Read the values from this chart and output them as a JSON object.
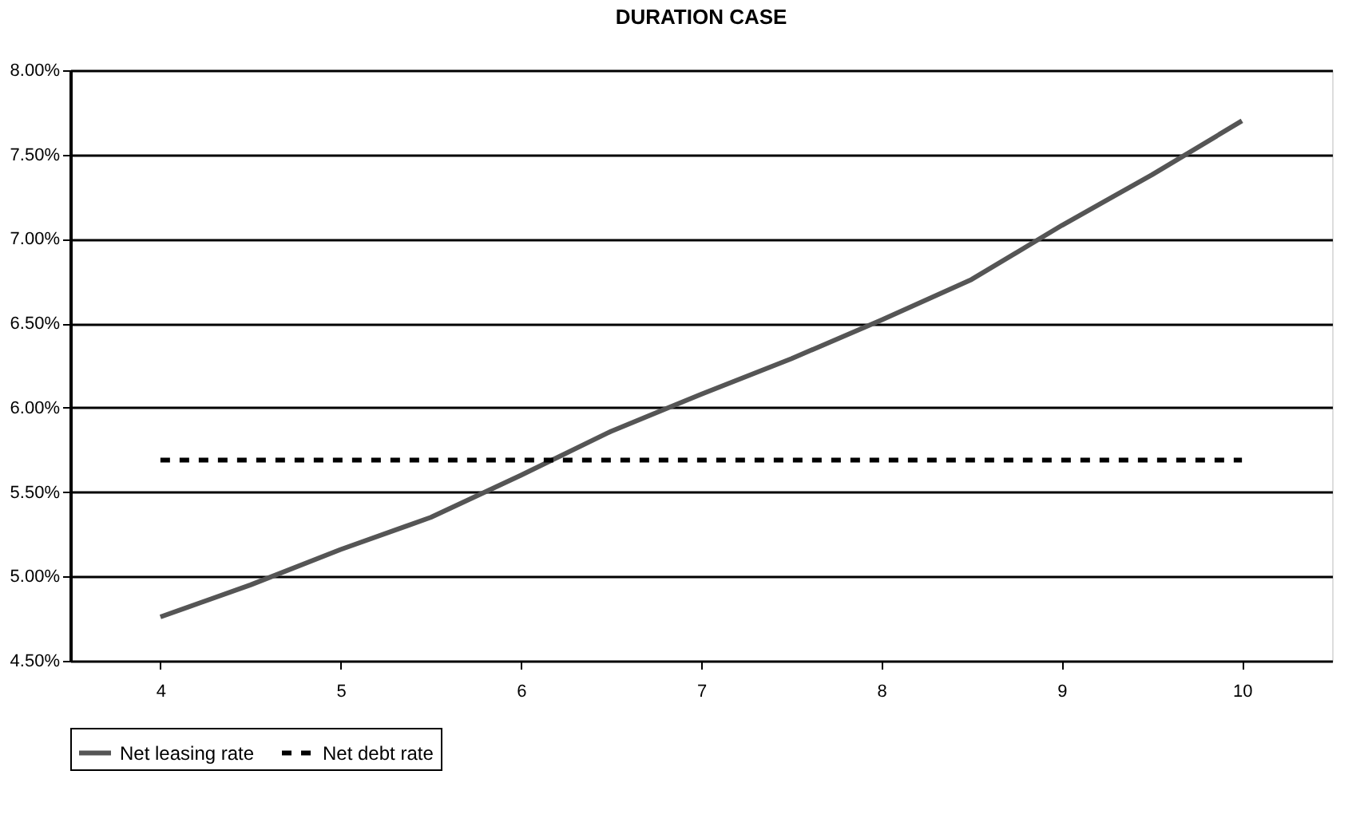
{
  "chart_data": {
    "type": "line",
    "title": "DURATION CASE",
    "x": [
      4,
      4.5,
      5,
      5.5,
      6,
      6.5,
      7,
      7.5,
      8,
      8.5,
      9,
      9.5,
      10
    ],
    "xlim": [
      3.5,
      10.5
    ],
    "xticks": [
      4,
      5,
      6,
      7,
      8,
      9,
      10
    ],
    "ylim": [
      4.5,
      8
    ],
    "yticks": [
      {
        "value": 4.5,
        "label": "4.50%"
      },
      {
        "value": 5,
        "label": "5.00%"
      },
      {
        "value": 5.5,
        "label": "5.50%"
      },
      {
        "value": 6,
        "label": "6.00%"
      },
      {
        "value": 6.5,
        "label": "6.50%"
      },
      {
        "value": 7,
        "label": "7.00%"
      },
      {
        "value": 7.5,
        "label": "7.50%"
      },
      {
        "value": 8,
        "label": "8.00%"
      }
    ],
    "series": [
      {
        "name": "Net leasing rate",
        "color": "#555555",
        "line_style": "solid",
        "values": [
          4.76,
          4.95,
          5.16,
          5.35,
          5.6,
          5.86,
          6.08,
          6.29,
          6.52,
          6.76,
          7.08,
          7.38,
          7.7
        ]
      },
      {
        "name": "Net debt rate",
        "color": "#000000",
        "line_style": "dashed",
        "values": [
          5.69,
          5.69,
          5.69,
          5.69,
          5.69,
          5.69,
          5.69,
          5.69,
          5.69,
          5.69,
          5.69,
          5.69,
          5.69
        ]
      }
    ],
    "grid": "y",
    "legend": "bottom",
    "marker": "none"
  }
}
